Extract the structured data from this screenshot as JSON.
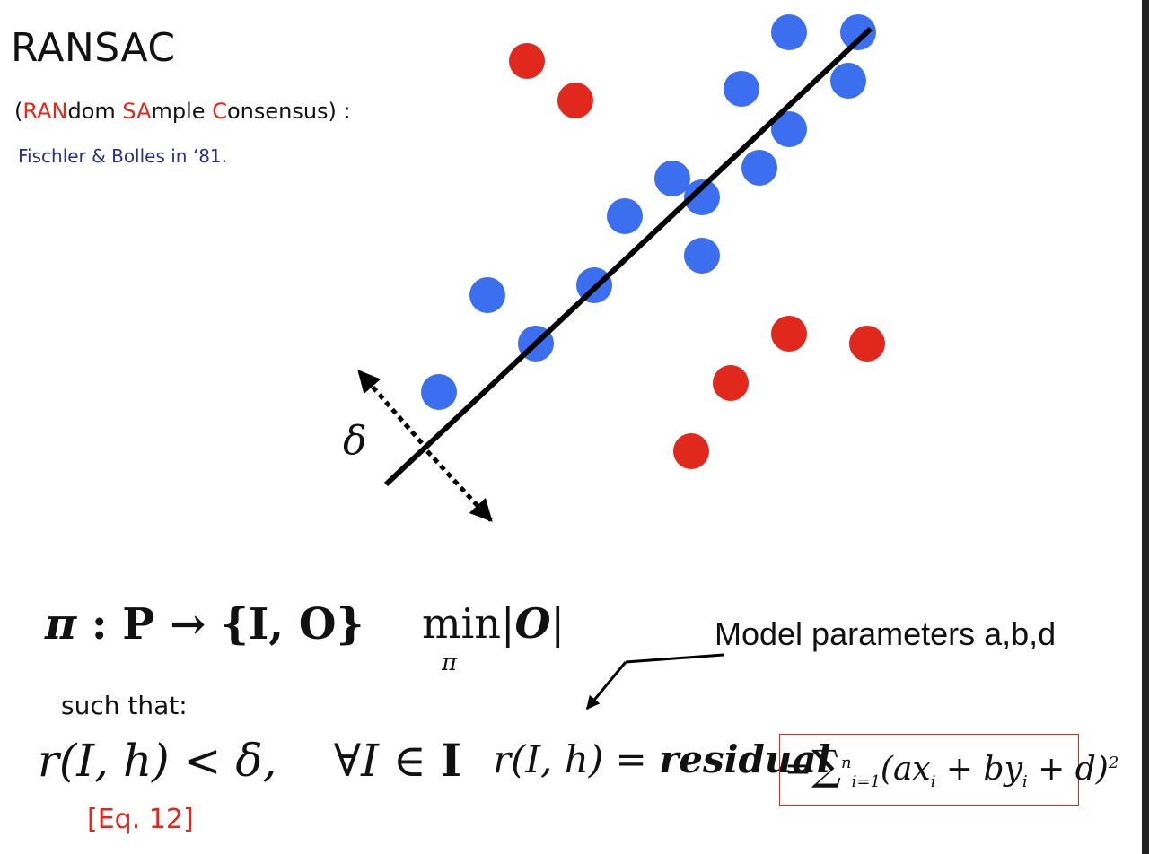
{
  "title": "RANSAC",
  "subtitle": {
    "open": "(",
    "parts": [
      "RAN",
      "dom ",
      "SA",
      "mple ",
      "C",
      "onsensus) :"
    ]
  },
  "credit": "Fischler & Bolles in ‘81.",
  "diagram": {
    "delta_symbol": "δ",
    "inlier_color": "#3b6ff0",
    "outlier_color": "#e0281c",
    "line_color": "#000000"
  },
  "equations": {
    "map": {
      "pi": "π",
      "colon": " : ",
      "P": "P",
      "arrow": " → ",
      "set": "{I, O}"
    },
    "min": {
      "min": "min",
      "sub": "π",
      "bar_left": "|",
      "O": "O",
      "bar_right": "|"
    },
    "such_that": "such that:",
    "constraint": {
      "lhs": "r(I, h) < δ,",
      "forall": "∀",
      "I": "I",
      "in": " ∈ ",
      "set": "I"
    },
    "eq_ref": "[Eq. 12]",
    "residual": {
      "lhs": "r(I, h)",
      "eq": " = ",
      "word": "residual"
    },
    "sum": {
      "eq": "=",
      "sigma": "∑",
      "upper": "n",
      "lower": "i=1",
      "body": "(ax",
      "i1": "i",
      "mid1": " + by",
      "i2": "i",
      "tail": " + d)",
      "pow": "2"
    }
  },
  "model_label": "Model parameters a,b,d"
}
